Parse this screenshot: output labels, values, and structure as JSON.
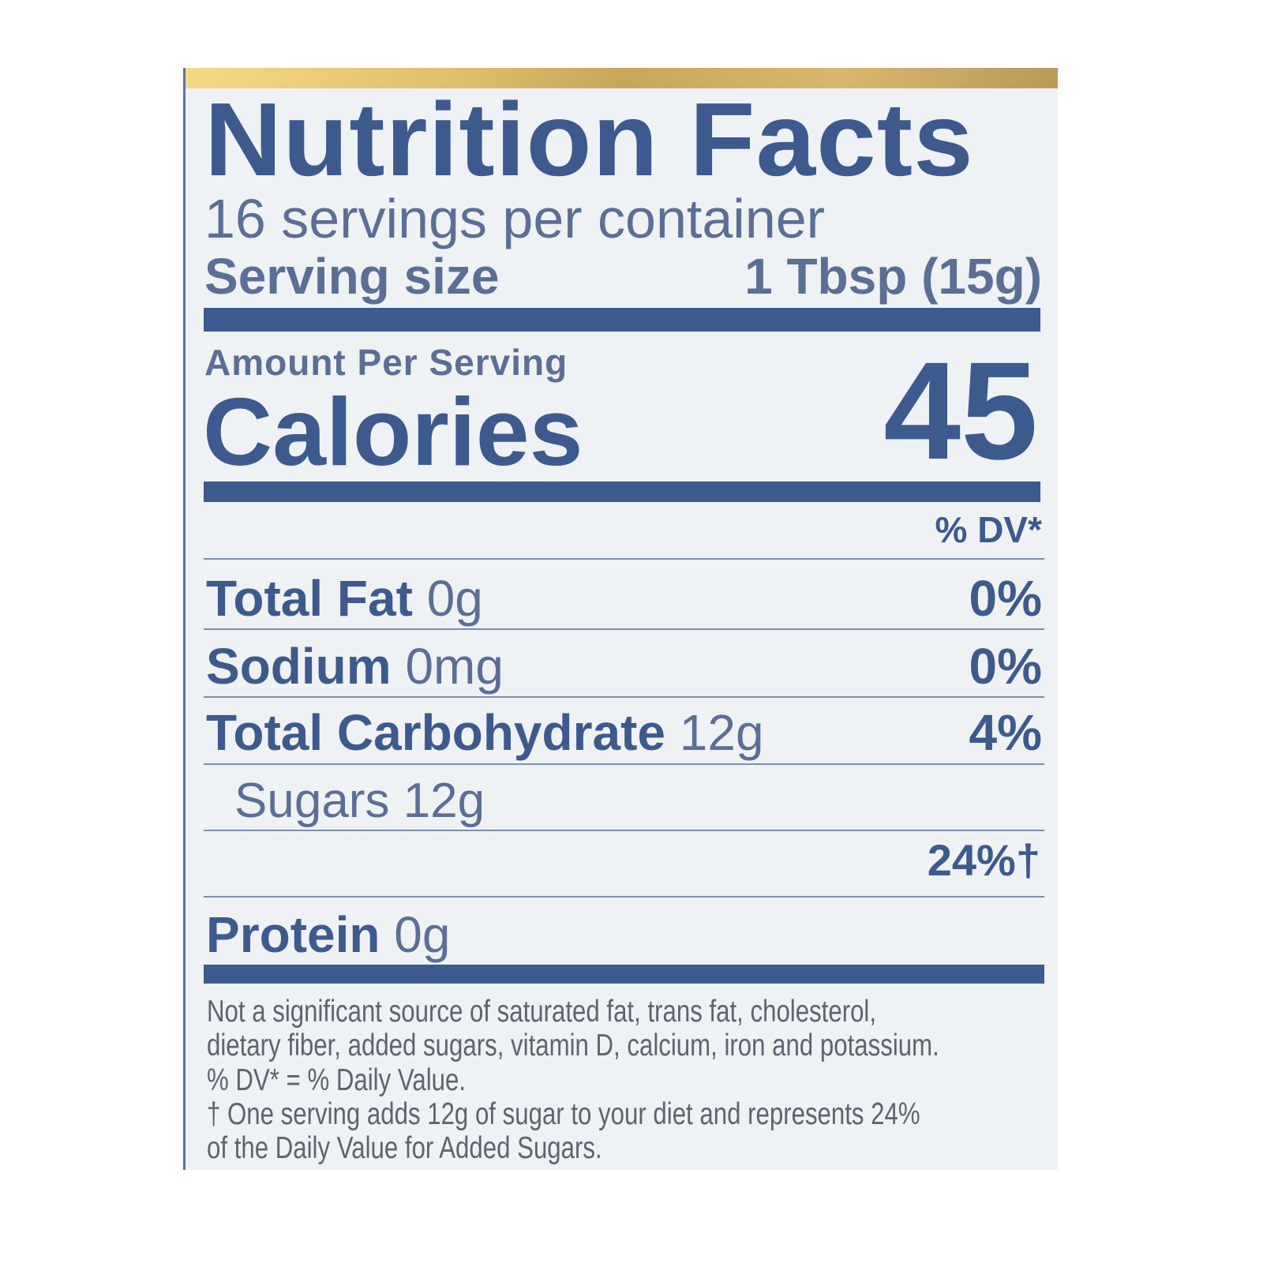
{
  "label": {
    "title": "Nutrition Facts",
    "servings_per_container": "16 servings per container",
    "serving_size_label": "Serving size",
    "serving_size_value": "1 Tbsp (15g)",
    "amount_per_serving": "Amount Per Serving",
    "calories_label": "Calories",
    "calories_value": "45",
    "dv_header": "% DV*",
    "nutrients": [
      {
        "name": "Total Fat",
        "amount": "0g",
        "dv": "0%"
      },
      {
        "name": "Sodium",
        "amount": "0mg",
        "dv": "0%"
      },
      {
        "name": "Total Carbohydrate",
        "amount": "12g",
        "dv": "4%"
      },
      {
        "name": "Sugars",
        "amount": "12g",
        "dv": ""
      },
      {
        "name": "",
        "amount": "",
        "dv": "24%†"
      },
      {
        "name": "Protein",
        "amount": "0g",
        "dv": ""
      }
    ],
    "footnotes": [
      "Not a significant source of saturated fat, trans fat, cholesterol,",
      "dietary fiber, added sugars, vitamin D, calcium, iron and potassium.",
      "% DV* = % Daily Value.",
      "† One serving adds 12g of sugar to your diet and represents 24%",
      "of the Daily Value for Added Sugars."
    ],
    "colors": {
      "ink": "#3d5a8e",
      "background": "#eef2f4",
      "footnote": "#5d6470",
      "gold": "#d8b86e"
    }
  }
}
